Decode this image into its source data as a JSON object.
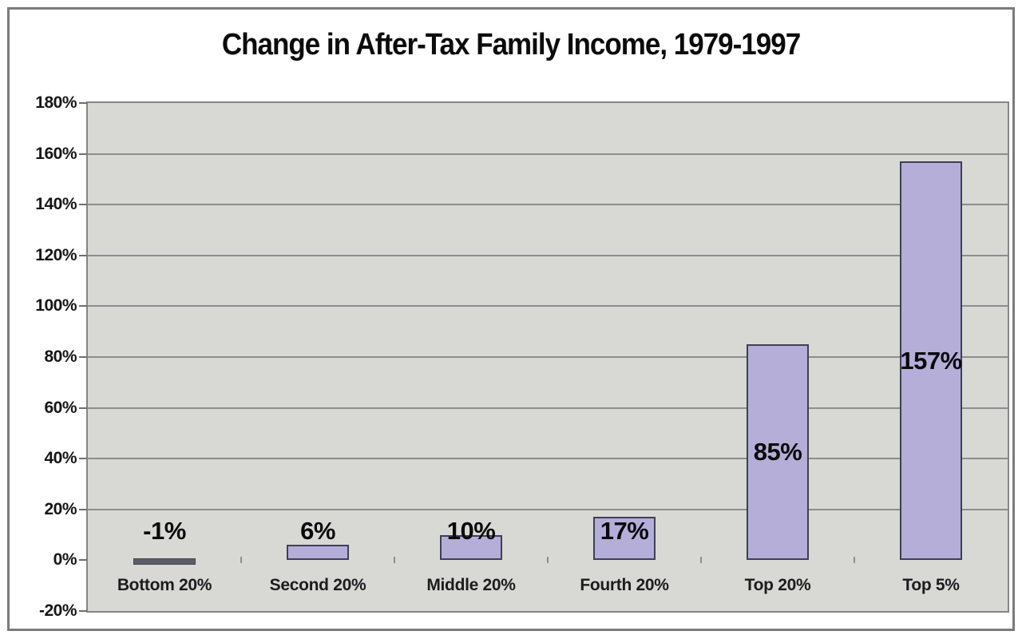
{
  "chart_data": {
    "type": "bar",
    "title": "Change in After-Tax Family Income, 1979-1997",
    "categories": [
      "Bottom 20%",
      "Second 20%",
      "Middle 20%",
      "Fourth 20%",
      "Top 20%",
      "Top 5%"
    ],
    "values": [
      -1,
      6,
      10,
      17,
      85,
      157
    ],
    "value_labels": [
      "-1%",
      "6%",
      "10%",
      "17%",
      "85%",
      "157%"
    ],
    "xlabel": "",
    "ylabel": "",
    "ylim": [
      -20,
      180
    ],
    "ytick_step": 20,
    "ytick_labels": [
      "180%",
      "160%",
      "140%",
      "120%",
      "100%",
      "80%",
      "60%",
      "40%",
      "20%",
      "0%",
      "-20%"
    ],
    "ytick_values": [
      180,
      160,
      140,
      120,
      100,
      80,
      60,
      40,
      20,
      0,
      -20
    ],
    "grid": "horizontal gridlines every 20%, no line drawn at 0%",
    "legend": "none",
    "colors": {
      "bar_fill": "#b5aed9",
      "bar_border": "#3f3f54",
      "negative_bar_fill": "#5c5c68",
      "plot_background": "#d8d8d5",
      "gridline": "#8d8d8d",
      "frame": "#858585",
      "outer_border": "#7b7b7b",
      "text": "#0b0b0b"
    }
  }
}
